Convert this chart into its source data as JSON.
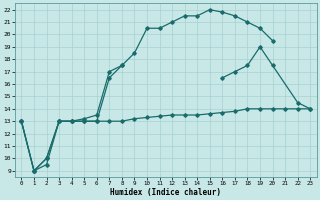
{
  "xlabel": "Humidex (Indice chaleur)",
  "background_color": "#c8e8e8",
  "line_color": "#1a6b6b",
  "grid_color": "#a8d0d0",
  "xlim": [
    -0.5,
    23.5
  ],
  "ylim": [
    8.5,
    22.5
  ],
  "xticks": [
    0,
    1,
    2,
    3,
    4,
    5,
    6,
    7,
    8,
    9,
    10,
    11,
    12,
    13,
    14,
    15,
    16,
    17,
    18,
    19,
    20,
    21,
    22,
    23
  ],
  "yticks": [
    9,
    10,
    11,
    12,
    13,
    14,
    15,
    16,
    17,
    18,
    19,
    20,
    21,
    22
  ],
  "line1_x": [
    0,
    1,
    2,
    3,
    4,
    5,
    6,
    7,
    8,
    9,
    10,
    11,
    12,
    13,
    14,
    15,
    16,
    17,
    18,
    19,
    20
  ],
  "line1_y": [
    13,
    9,
    9.5,
    13,
    13,
    13.2,
    13.5,
    17,
    17.5,
    18.5,
    20.5,
    20.5,
    21,
    21.5,
    21.5,
    22,
    21.8,
    21.5,
    21,
    20.5,
    19.5
  ],
  "line2_x": [
    0,
    1,
    2,
    3,
    4,
    5,
    6,
    7,
    8,
    9,
    10,
    11,
    12,
    13,
    14,
    15,
    16,
    17,
    18,
    19,
    20,
    21,
    22,
    23
  ],
  "line2_y": [
    13,
    9,
    10,
    13,
    13,
    13,
    13,
    13,
    13,
    13.2,
    13.3,
    13.4,
    13.5,
    13.5,
    13.5,
    13.6,
    13.7,
    13.8,
    14.0,
    14.0,
    14.0,
    14.0,
    14.0,
    14.0
  ],
  "line3a_x": [
    0,
    1,
    2,
    3,
    4,
    5,
    6,
    7,
    8
  ],
  "line3a_y": [
    13,
    9,
    10,
    13,
    13,
    13,
    13,
    16.5,
    17.5
  ],
  "line3b_x": [
    16,
    17,
    18,
    19,
    20,
    22,
    23
  ],
  "line3b_y": [
    16.5,
    17.0,
    17.5,
    19.0,
    17.5,
    14.5,
    14.0
  ]
}
